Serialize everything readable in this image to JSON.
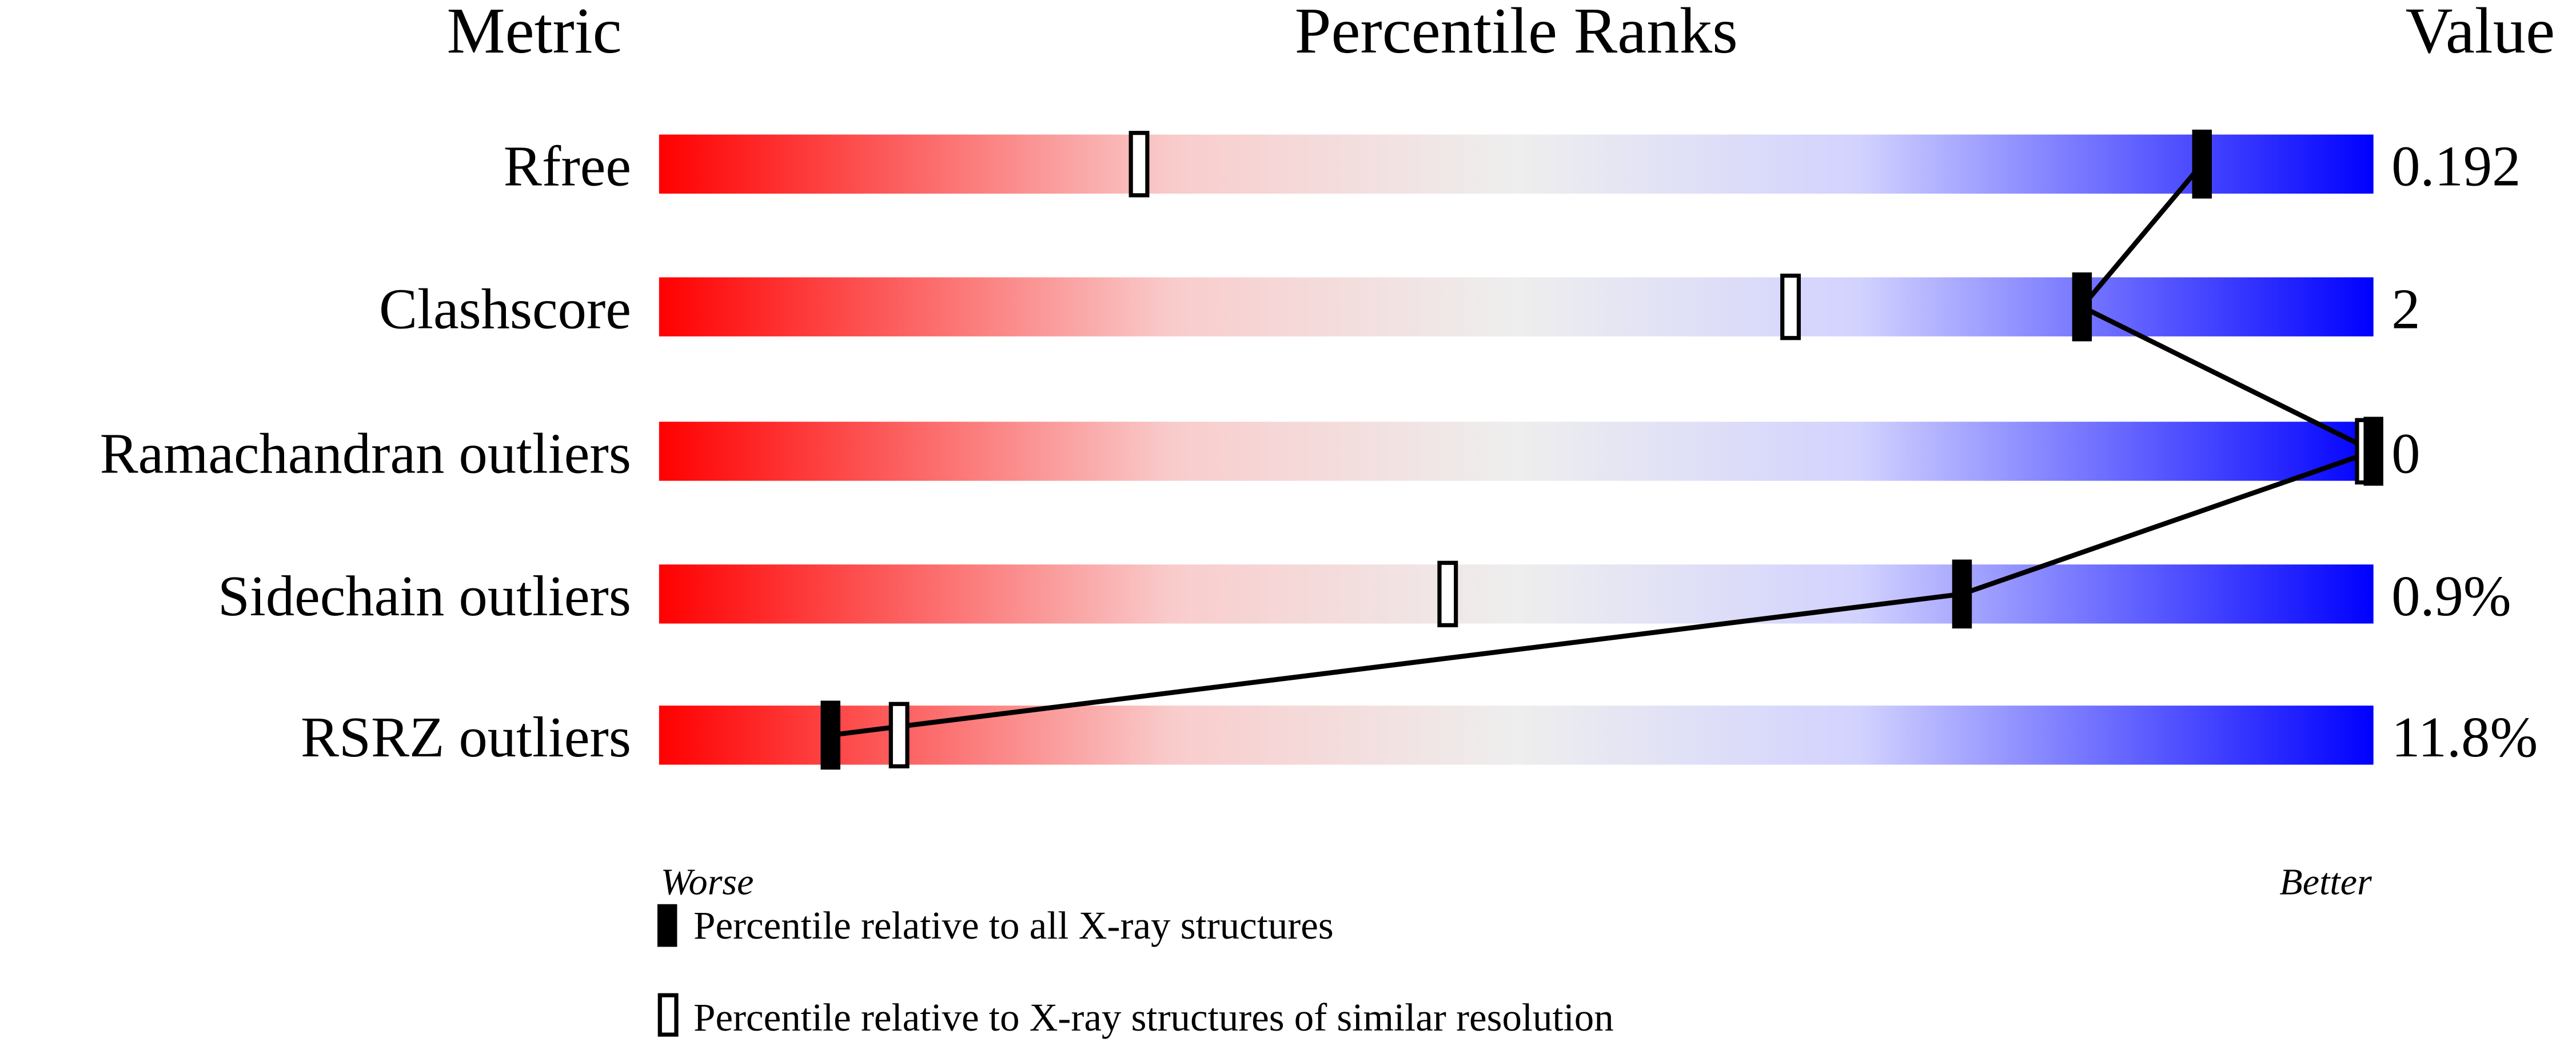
{
  "chart_data": {
    "type": "percentile-bar",
    "headers": {
      "metric": "Metric",
      "ranks": "Percentile Ranks",
      "value": "Value"
    },
    "axis": {
      "left_label": "Worse",
      "right_label": "Better",
      "range": [
        0,
        100
      ]
    },
    "colors": {
      "worse": "#ff0000",
      "middle": "#eeeeee",
      "better": "#0000ff",
      "marker": "#000000"
    },
    "metrics": [
      {
        "name": "Rfree",
        "value": "0.192",
        "percentile_all": 90,
        "percentile_similar": 28
      },
      {
        "name": "Clashscore",
        "value": "2",
        "percentile_all": 83,
        "percentile_similar": 66
      },
      {
        "name": "Ramachandran outliers",
        "value": "0",
        "percentile_all": 100,
        "percentile_similar": 100
      },
      {
        "name": "Sidechain outliers",
        "value": "0.9%",
        "percentile_all": 76,
        "percentile_similar": 46
      },
      {
        "name": "RSRZ outliers",
        "value": "11.8%",
        "percentile_all": 10,
        "percentile_similar": 14
      }
    ],
    "legend": [
      {
        "marker": "filled",
        "label": "Percentile relative to all X-ray structures"
      },
      {
        "marker": "open",
        "label": "Percentile relative to X-ray structures of similar resolution"
      }
    ]
  }
}
